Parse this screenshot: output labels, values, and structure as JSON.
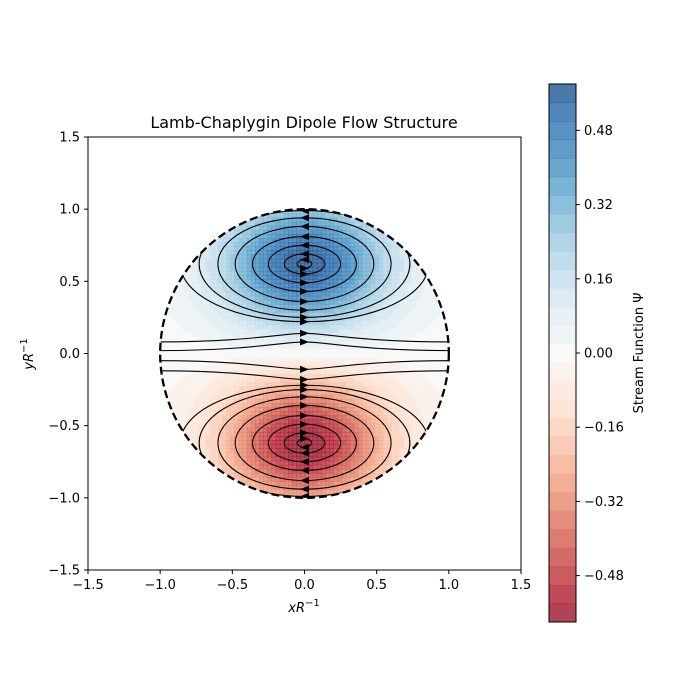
{
  "chart_data": {
    "type": "heatmap",
    "title": "Lamb-Chaplygin Dipole Flow Structure",
    "xlabel": "xR",
    "xlabel_sup": "−1",
    "ylabel": "yR",
    "ylabel_sup": "−1",
    "xlim": [
      -1.5,
      1.5
    ],
    "ylim": [
      -1.5,
      1.5
    ],
    "x_ticks": [
      {
        "value": -1.5,
        "label": "−1.5"
      },
      {
        "value": -1.0,
        "label": "−1.0"
      },
      {
        "value": -0.5,
        "label": "−0.5"
      },
      {
        "value": 0.0,
        "label": "0.0"
      },
      {
        "value": 0.5,
        "label": "0.5"
      },
      {
        "value": 1.0,
        "label": "1.0"
      },
      {
        "value": 1.5,
        "label": "1.5"
      }
    ],
    "y_ticks": [
      {
        "value": -1.5,
        "label": "−1.5"
      },
      {
        "value": -1.0,
        "label": "−1.0"
      },
      {
        "value": -0.5,
        "label": "−0.5"
      },
      {
        "value": 0.0,
        "label": "0.0"
      },
      {
        "value": 0.5,
        "label": "0.5"
      },
      {
        "value": 1.0,
        "label": "1.0"
      },
      {
        "value": 1.5,
        "label": "1.5"
      }
    ],
    "field": {
      "name": "Stream Function Ψ",
      "vortex_centers": [
        [
          0.0,
          0.62
        ],
        [
          0.0,
          -0.62
        ]
      ],
      "peak_values": [
        0.58,
        -0.58
      ],
      "boundary_radius": 1.0,
      "boundary_style": "dashed"
    },
    "colorbar": {
      "label": "Stream Function Ψ",
      "range": [
        -0.58,
        0.58
      ],
      "ticks": [
        {
          "value": 0.48,
          "label": "0.48"
        },
        {
          "value": 0.32,
          "label": "0.32"
        },
        {
          "value": 0.16,
          "label": "0.16"
        },
        {
          "value": 0.0,
          "label": "0.00"
        },
        {
          "value": -0.16,
          "label": "−0.16"
        },
        {
          "value": -0.32,
          "label": "−0.32"
        },
        {
          "value": -0.48,
          "label": "−0.48"
        }
      ],
      "colormap": "RdBu (red negative, blue positive)",
      "levels": 29
    },
    "streamlines": "black with arrowheads, counter-clockwise upper vortex, clockwise lower vortex",
    "colors": {
      "positive": "#2e6aa7",
      "negative": "#b5303c",
      "neutral": "#f7f7f7",
      "boundary": "#000000"
    }
  }
}
